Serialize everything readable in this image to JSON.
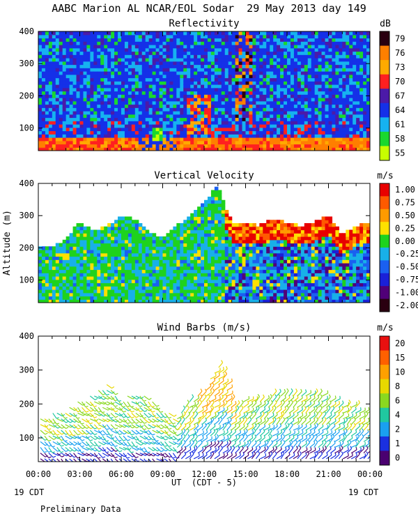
{
  "figure": {
    "title": "AABC Marion AL NCAR/EOL Sodar  29 May 2013 day 149",
    "footer_left": "19 CDT",
    "footer_right": "19 CDT",
    "footnote": "Preliminary Data",
    "xlabel": "UT  (CDT - 5)"
  },
  "chart_data": [
    {
      "type": "heatmap",
      "title": "Reflectivity",
      "units": "dB",
      "ylabel": "",
      "x_ticks": [
        "00:00",
        "03:00",
        "06:00",
        "09:00",
        "12:00",
        "15:00",
        "18:00",
        "21:00",
        "00:00"
      ],
      "xlim_hours": [
        0,
        24
      ],
      "ylim": [
        30,
        400
      ],
      "y_ticks": [
        100,
        200,
        300,
        400
      ],
      "colorbar_labels": [
        "79",
        "76",
        "73",
        "70",
        "67",
        "64",
        "61",
        "58",
        "55"
      ],
      "colorbar_colors": [
        "#2a0010",
        "#ff7f00",
        "#ffaa00",
        "#ff2020",
        "#4b1aa8",
        "#1530e8",
        "#16b2f0",
        "#1ad82e",
        "#c8ff00"
      ],
      "features": [
        {
          "desc": "near-surface layer 70-76 dB",
          "hours": [
            0,
            24
          ],
          "alt": [
            30,
            80
          ]
        },
        {
          "desc": "warm plume 73-76 dB",
          "hours": [
            10.5,
            12.5
          ],
          "alt": [
            80,
            200
          ]
        },
        {
          "desc": "bright column 76-79 dB",
          "hours": [
            14,
            15.5
          ],
          "alt": [
            100,
            400
          ]
        }
      ]
    },
    {
      "type": "heatmap",
      "title": "Vertical Velocity",
      "units": "m/s",
      "ylabel": "Altitude (m)",
      "x_ticks": [
        "00:00",
        "03:00",
        "06:00",
        "09:00",
        "12:00",
        "15:00",
        "18:00",
        "21:00",
        "00:00"
      ],
      "xlim_hours": [
        0,
        24
      ],
      "ylim": [
        30,
        400
      ],
      "y_ticks": [
        100,
        200,
        300,
        400
      ],
      "colorbar_labels": [
        "1.00",
        "0.75",
        "0.50",
        "0.25",
        "0.00",
        "-0.25",
        "-0.50",
        "-0.75",
        "-1.00",
        "-2.00"
      ],
      "colorbar_colors": [
        "#e80000",
        "#ff5a00",
        "#ff9a00",
        "#ffe000",
        "#1ed21e",
        "#18b0e8",
        "#1a60f0",
        "#1a20d8",
        "#500078",
        "#2a0010"
      ],
      "data_top_alt_by_hour": {
        "hours": [
          0,
          1,
          2,
          3,
          4,
          5,
          6,
          7,
          8,
          9,
          10,
          11,
          12,
          12.5,
          13,
          13.5,
          14,
          15,
          16,
          17,
          18,
          19,
          20,
          21,
          22,
          23,
          24
        ],
        "top_m": [
          200,
          200,
          230,
          280,
          250,
          270,
          300,
          290,
          250,
          230,
          270,
          300,
          340,
          370,
          400,
          330,
          280,
          280,
          270,
          290,
          280,
          270,
          280,
          300,
          240,
          270,
          280
        ]
      }
    },
    {
      "type": "vector",
      "title": "Wind Barbs (m/s)",
      "units": "m/s",
      "ylabel": "",
      "x_ticks": [
        "00:00",
        "03:00",
        "06:00",
        "09:00",
        "12:00",
        "15:00",
        "18:00",
        "21:00",
        "00:00"
      ],
      "xlim_hours": [
        0,
        24
      ],
      "ylim": [
        30,
        400
      ],
      "y_ticks": [
        100,
        200,
        300,
        400
      ],
      "colorbar_labels": [
        "20",
        "15",
        "10",
        "8",
        "6",
        "4",
        "2",
        "1",
        "0"
      ],
      "colorbar_colors": [
        "#e81010",
        "#ff6000",
        "#ffa000",
        "#e8d800",
        "#8ad820",
        "#20c8a0",
        "#1aa0f0",
        "#1a30e0",
        "#4a0070"
      ],
      "data_top_alt_by_hour": {
        "hours": [
          0,
          2,
          4,
          5,
          6,
          7,
          8,
          9,
          10,
          11,
          12,
          12.5,
          13,
          13.5,
          14,
          16,
          18,
          20,
          22,
          24
        ],
        "top_m": [
          160,
          190,
          230,
          260,
          210,
          240,
          220,
          180,
          170,
          210,
          240,
          280,
          320,
          300,
          200,
          220,
          230,
          240,
          200,
          180
        ]
      }
    }
  ]
}
